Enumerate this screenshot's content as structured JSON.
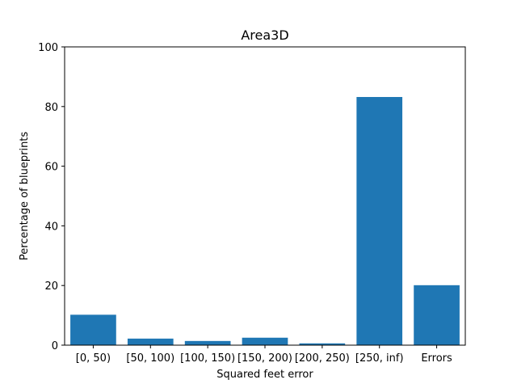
{
  "chart_data": {
    "type": "bar",
    "title": "Area3D",
    "xlabel": "Squared feet error",
    "ylabel": "Percentage of blueprints",
    "categories": [
      "[0, 50)",
      "[50, 100)",
      "[100, 150)",
      "[150, 200)",
      "[200, 250)",
      "[250, inf)",
      "Errors"
    ],
    "values": [
      10.2,
      2.2,
      1.4,
      2.5,
      0.6,
      83.2,
      20.1
    ],
    "ylim": [
      0,
      100
    ],
    "yticks": [
      0,
      20,
      40,
      60,
      80,
      100
    ],
    "grid": false,
    "legend": "none",
    "bar_color": "#1f77b4"
  }
}
